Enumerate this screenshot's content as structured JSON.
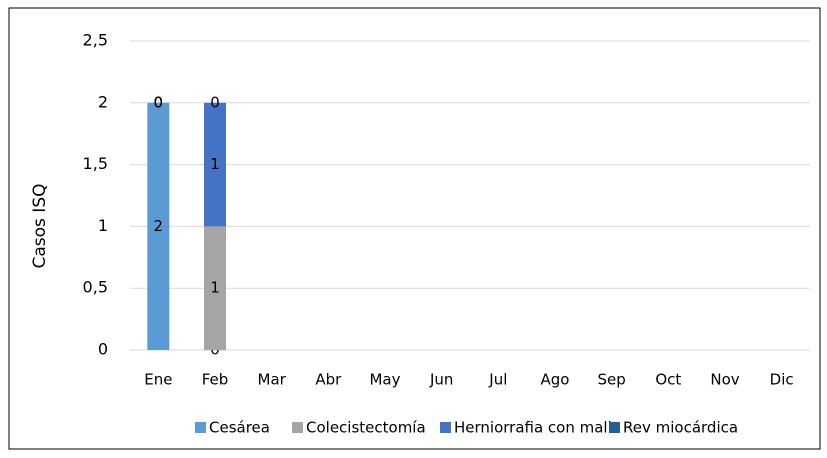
{
  "chart_data": {
    "type": "stacked_bar",
    "y_label": "Casos ISQ",
    "categories": [
      "Ene",
      "Feb",
      "Mar",
      "Abr",
      "May",
      "Jun",
      "Jul",
      "Ago",
      "Sep",
      "Oct",
      "Nov",
      "Dic"
    ],
    "series": [
      {
        "name": "Cesárea",
        "color": "#5b9bd5",
        "values": [
          2,
          0,
          null,
          null,
          null,
          null,
          null,
          null,
          null,
          null,
          null,
          null
        ]
      },
      {
        "name": "Colecistectomía",
        "color": "#a5a5a5",
        "values": [
          0,
          1,
          null,
          null,
          null,
          null,
          null,
          null,
          null,
          null,
          null,
          null
        ]
      },
      {
        "name": "Herniorrafia con malla",
        "color": "#4472c4",
        "values": [
          0,
          1,
          null,
          null,
          null,
          null,
          null,
          null,
          null,
          null,
          null,
          null
        ]
      },
      {
        "name": "Rev miocárdica",
        "color": "#255e91",
        "values": [
          0,
          0,
          null,
          null,
          null,
          null,
          null,
          null,
          null,
          null,
          null,
          null
        ]
      }
    ],
    "ylim": [
      0,
      2.5
    ],
    "yticks": [
      0,
      {
        "value": 0.5,
        "label": "0,5"
      },
      1,
      {
        "value": 1.5,
        "label": "1,5"
      },
      2,
      {
        "value": 2.5,
        "label": "2,5"
      }
    ],
    "grid": true,
    "legend": "bottom",
    "data_labels": true
  }
}
